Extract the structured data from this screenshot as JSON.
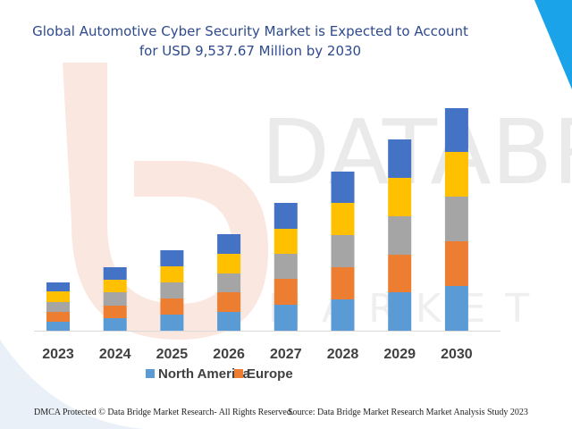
{
  "colors": {
    "title": "#2e4a8c",
    "series": [
      "#5b9bd5",
      "#ed7d31",
      "#a5a5a5",
      "#ffc000",
      "#4472c4"
    ],
    "watermark_red": "#f6d3c6",
    "watermark_gray": "#eaeaea",
    "corner_blue": "#1aa3e8"
  },
  "header": {
    "title_line1": "Global Automotive Cyber Security Market is Expected to Account",
    "title_line2": "for USD 9,537.67 Million by 2030"
  },
  "watermark": {
    "brand": "DATABR",
    "sub": "MARKET RE"
  },
  "footer": {
    "left": "DMCA Protected © Data Bridge Market Research- All Rights Reserved.",
    "right": "Source: Data Bridge Market Research Market Analysis Study 2023"
  },
  "chart_data": {
    "type": "bar",
    "stacked": true,
    "title": "Global Automotive Cyber Security Market is Expected to Account for USD 9,537.67 Million by 2030",
    "categories": [
      "2023",
      "2024",
      "2025",
      "2026",
      "2027",
      "2028",
      "2029",
      "2030"
    ],
    "series": [
      {
        "name": "North America",
        "values": [
          10,
          14,
          18,
          21,
          29,
          35,
          43,
          50
        ]
      },
      {
        "name": "Europe",
        "values": [
          11,
          14,
          18,
          22,
          29,
          36,
          42,
          50
        ]
      },
      {
        "name": "",
        "values": [
          11,
          15,
          18,
          21,
          28,
          36,
          43,
          50
        ]
      },
      {
        "name": "",
        "values": [
          12,
          14,
          18,
          22,
          28,
          36,
          43,
          50
        ]
      },
      {
        "name": "",
        "values": [
          10,
          14,
          18,
          22,
          29,
          35,
          43,
          49
        ]
      }
    ],
    "ylim": [
      0,
      250
    ],
    "grid": false,
    "legend_position": "bottom",
    "xlabel": "",
    "ylabel": ""
  }
}
